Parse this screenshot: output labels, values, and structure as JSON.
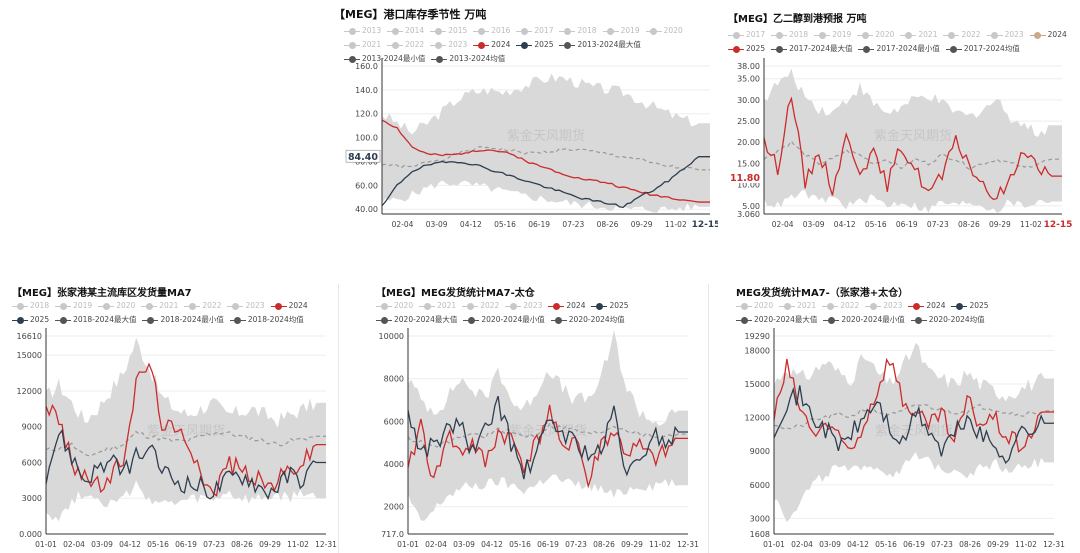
{
  "watermark": "紫金天风期货",
  "colors": {
    "red": "#cc2b2b",
    "navy": "#2d3e50",
    "band": "#d9d9d9",
    "avg": "#999999",
    "muted": "#c8c8c8",
    "text": "#333333"
  },
  "chart_data": [
    {
      "id": "c1",
      "type": "line",
      "title": "【MEG】港口库存季节性 万吨",
      "legend": [
        {
          "label": "2013",
          "muted": true
        },
        {
          "label": "2014",
          "muted": true
        },
        {
          "label": "2015",
          "muted": true
        },
        {
          "label": "2016",
          "muted": true
        },
        {
          "label": "2017",
          "muted": true
        },
        {
          "label": "2018",
          "muted": true
        },
        {
          "label": "2019",
          "muted": true
        },
        {
          "label": "2020",
          "muted": true
        },
        {
          "label": "2021",
          "muted": true
        },
        {
          "label": "2022",
          "muted": true
        },
        {
          "label": "2023",
          "muted": true
        },
        {
          "label": "2024",
          "color": "red"
        },
        {
          "label": "2025",
          "color": "navy"
        },
        {
          "label": "2013-2024最大值",
          "color": "grey"
        },
        {
          "label": "2013-2024最小值",
          "color": "grey"
        },
        {
          "label": "2013-2024均值",
          "color": "grey"
        }
      ],
      "y_ticks": [
        "40.00",
        "60.00",
        "80.00",
        "100.0",
        "120.0",
        "140.0",
        "160.0"
      ],
      "ylim": [
        36,
        160
      ],
      "x_ticks": [
        "02-04",
        "03-09",
        "04-12",
        "05-16",
        "06-19",
        "07-23",
        "08-26",
        "09-29",
        "11-02",
        "12-15"
      ],
      "highlight_x": "12-15",
      "highlight_y": "84.40",
      "highlight_y_value": 84.4,
      "band_max": [
        120,
        112,
        104,
        112,
        122,
        132,
        138,
        140,
        138,
        142,
        146,
        150,
        150,
        146,
        142,
        140,
        138,
        132,
        126,
        120,
        115,
        112
      ],
      "band_min": [
        46,
        48,
        52,
        58,
        62,
        62,
        60,
        58,
        55,
        52,
        50,
        48,
        46,
        44,
        43,
        42,
        40,
        40,
        40,
        40,
        41,
        42
      ],
      "avg": [
        78,
        76,
        75,
        80,
        82,
        86,
        90,
        92,
        90,
        88,
        87,
        88,
        90,
        90,
        88,
        86,
        84,
        82,
        78,
        76,
        74,
        73
      ],
      "series": [
        {
          "name": "2024",
          "color": "red",
          "values": [
            115,
            108,
            92,
            86,
            85,
            86,
            89,
            90,
            88,
            84,
            78,
            74,
            70,
            66,
            64,
            62,
            58,
            55,
            52,
            50,
            48,
            46
          ]
        },
        {
          "name": "2025",
          "color": "navy",
          "values": [
            42,
            60,
            72,
            77,
            79,
            80,
            78,
            74,
            70,
            66,
            62,
            58,
            54,
            50,
            47,
            45,
            42,
            50,
            56,
            64,
            74,
            84
          ]
        }
      ]
    },
    {
      "id": "c2",
      "type": "line",
      "title": "【MEG】乙二醇到港预报 万吨",
      "legend": [
        {
          "label": "2017",
          "muted": true
        },
        {
          "label": "2018",
          "muted": true
        },
        {
          "label": "2019",
          "muted": true
        },
        {
          "label": "2020",
          "muted": true
        },
        {
          "label": "2021",
          "muted": true
        },
        {
          "label": "2022",
          "muted": true
        },
        {
          "label": "2023",
          "muted": true
        },
        {
          "label": "2024",
          "color": "tan"
        },
        {
          "label": "2025",
          "color": "red"
        },
        {
          "label": "2017-2024最大值",
          "color": "grey"
        },
        {
          "label": "2017-2024最小值",
          "color": "grey"
        },
        {
          "label": "2017-2024均值",
          "color": "grey"
        }
      ],
      "y_ticks": [
        "3.060",
        "5.00",
        "10.00",
        "15.00",
        "20.00",
        "25.00",
        "30.00",
        "35.00",
        "38.00"
      ],
      "ylim": [
        3.06,
        38
      ],
      "x_ticks": [
        "02-04",
        "03-09",
        "04-12",
        "05-16",
        "06-19",
        "07-23",
        "08-26",
        "09-29",
        "11-02",
        "12-15"
      ],
      "highlight_x": "12-15",
      "highlight_y": "11.80",
      "highlight_y_value": 11.8,
      "band_max": [
        30,
        34,
        36,
        31,
        28,
        27,
        30,
        33,
        29,
        27,
        28,
        30,
        31,
        29,
        27,
        26,
        28,
        30,
        26,
        24,
        22,
        24
      ],
      "band_min": [
        6,
        5,
        7,
        8,
        6,
        7,
        5,
        6,
        7,
        5,
        6,
        5,
        4,
        6,
        5,
        6,
        5,
        4,
        6,
        5,
        6,
        6
      ],
      "avg": [
        16,
        18,
        20,
        17,
        15,
        16,
        18,
        17,
        15,
        16,
        14,
        16,
        15,
        17,
        16,
        14,
        15,
        16,
        15,
        14,
        15,
        16
      ],
      "series": [
        {
          "name": "2025",
          "color": "red",
          "values": [
            20,
            14,
            32,
            10,
            18,
            9,
            21,
            14,
            17,
            10,
            19,
            14,
            8,
            12,
            20,
            15,
            9,
            7,
            11,
            19,
            14,
            12
          ]
        }
      ]
    },
    {
      "id": "c3",
      "type": "line",
      "title": "【MEG】张家港某主流库区发货量MA7",
      "legend": [
        {
          "label": "2018",
          "muted": true
        },
        {
          "label": "2019",
          "muted": true
        },
        {
          "label": "2020",
          "muted": true
        },
        {
          "label": "2021",
          "muted": true
        },
        {
          "label": "2022",
          "muted": true
        },
        {
          "label": "2023",
          "muted": true
        },
        {
          "label": "2024",
          "color": "red"
        },
        {
          "label": "2025",
          "color": "navy"
        },
        {
          "label": "2018-2024最大值",
          "color": "grey"
        },
        {
          "label": "2018-2024最小值",
          "color": "grey"
        },
        {
          "label": "2018-2024均值",
          "color": "grey"
        }
      ],
      "y_ticks": [
        "0.000",
        "3000",
        "6000",
        "9000",
        "12000",
        "15000",
        "16610"
      ],
      "ylim": [
        0,
        16610
      ],
      "x_ticks": [
        "01-01",
        "02-04",
        "03-09",
        "04-12",
        "05-16",
        "06-19",
        "07-23",
        "08-26",
        "09-29",
        "11-02",
        "12-31"
      ],
      "band_max": [
        11500,
        12500,
        11000,
        9500,
        10500,
        12000,
        13500,
        16200,
        14000,
        11500,
        10500,
        10000,
        10500,
        11000,
        10000,
        10200,
        10500,
        10000,
        9500,
        10000,
        10500,
        11000
      ],
      "band_min": [
        2000,
        1200,
        2800,
        3500,
        3000,
        2500,
        3000,
        4000,
        3000,
        2500,
        2500,
        2800,
        3000,
        2800,
        3500,
        3000,
        2800,
        3000,
        3200,
        3000,
        3500,
        3000
      ],
      "avg": [
        7000,
        7200,
        7500,
        6500,
        6800,
        7200,
        7500,
        8500,
        8200,
        8000,
        7800,
        7800,
        8200,
        8500,
        8500,
        8200,
        8000,
        7800,
        7500,
        7800,
        8000,
        8200
      ],
      "series": [
        {
          "name": "2024",
          "color": "red",
          "values": [
            11000,
            9500,
            6000,
            5000,
            4000,
            4500,
            6500,
            12500,
            14500,
            9500,
            8500,
            8000,
            5500,
            3000,
            6000,
            5500,
            5000,
            4000,
            4500,
            5500,
            6000,
            7500
          ]
        },
        {
          "name": "2025",
          "color": "navy",
          "values": [
            5000,
            8500,
            6500,
            4500,
            5500,
            6000,
            5200,
            6500,
            7000,
            5500,
            4500,
            4200,
            4000,
            3500,
            4500,
            5000,
            4500,
            3500,
            4000,
            5000,
            4500,
            6000
          ]
        }
      ]
    },
    {
      "id": "c4",
      "type": "line",
      "title": "【MEG】MEG发货统计MA7-太仓",
      "legend": [
        {
          "label": "2020",
          "muted": true
        },
        {
          "label": "2021",
          "muted": true
        },
        {
          "label": "2022",
          "muted": true
        },
        {
          "label": "2023",
          "muted": true
        },
        {
          "label": "2024",
          "color": "red"
        },
        {
          "label": "2025",
          "color": "navy"
        },
        {
          "label": "2020-2024最大值",
          "color": "grey"
        },
        {
          "label": "2020-2024最小值",
          "color": "grey"
        },
        {
          "label": "2020-2024均值",
          "color": "grey"
        }
      ],
      "y_ticks": [
        "717.0",
        "2000",
        "4000",
        "6000",
        "8000",
        "10000"
      ],
      "ylim": [
        717,
        10000
      ],
      "x_ticks": [
        "01-01",
        "02-04",
        "03-09",
        "04-12",
        "05-16",
        "06-19",
        "07-23",
        "08-26",
        "09-29",
        "11-02",
        "12-31"
      ],
      "band_max": [
        8000,
        7000,
        6500,
        7000,
        8000,
        7500,
        7000,
        8500,
        7000,
        6500,
        7500,
        8500,
        7500,
        7000,
        7000,
        8000,
        10000,
        7500,
        6500,
        6000,
        6000,
        6500
      ],
      "band_min": [
        2500,
        1200,
        1800,
        2500,
        2800,
        3000,
        3000,
        3200,
        3000,
        2800,
        3000,
        3500,
        3200,
        3000,
        3000,
        2800,
        2500,
        2800,
        3000,
        3000,
        3200,
        3000
      ],
      "avg": [
        5200,
        5000,
        4800,
        5000,
        5200,
        5400,
        5300,
        5600,
        5500,
        5300,
        5400,
        5800,
        5700,
        5600,
        5400,
        5500,
        5800,
        5600,
        5400,
        5300,
        5300,
        5400
      ],
      "series": [
        {
          "name": "2024",
          "color": "red",
          "values": [
            3500,
            6000,
            3000,
            5500,
            4500,
            5000,
            4000,
            5500,
            5200,
            4000,
            5000,
            6500,
            4500,
            5500,
            3000,
            5000,
            5500,
            4500,
            4800,
            4200,
            4500,
            5200
          ]
        },
        {
          "name": "2025",
          "color": "navy",
          "values": [
            6500,
            4500,
            5000,
            5500,
            6000,
            4500,
            5500,
            7000,
            5000,
            3500,
            4500,
            6000,
            5500,
            5000,
            4500,
            4500,
            6500,
            3500,
            4000,
            5500,
            5000,
            5500
          ]
        }
      ]
    },
    {
      "id": "c5",
      "type": "line",
      "title": "MEG发货统计MA7-（张家港+太仓）",
      "legend": [
        {
          "label": "2020",
          "muted": true
        },
        {
          "label": "2021",
          "muted": true
        },
        {
          "label": "2022",
          "muted": true
        },
        {
          "label": "2023",
          "muted": true
        },
        {
          "label": "2024",
          "color": "red"
        },
        {
          "label": "2025",
          "color": "navy"
        },
        {
          "label": "2020-2024最大值",
          "color": "grey"
        },
        {
          "label": "2020-2024最小值",
          "color": "grey"
        },
        {
          "label": "2020-2024均值",
          "color": "grey"
        }
      ],
      "y_ticks": [
        "1608",
        "3000",
        "6000",
        "9000",
        "12000",
        "15000",
        "18000",
        "19290"
      ],
      "ylim": [
        1608,
        19290
      ],
      "x_ticks": [
        "01-01",
        "02-04",
        "03-09",
        "04-12",
        "05-16",
        "06-19",
        "07-23",
        "08-26",
        "09-29",
        "11-02",
        "12-31"
      ],
      "band_max": [
        15000,
        16500,
        15500,
        16000,
        17000,
        16000,
        15500,
        17500,
        16000,
        15000,
        16500,
        18500,
        16000,
        15500,
        15000,
        16000,
        15000,
        14500,
        14000,
        14500,
        15000,
        15500
      ],
      "band_min": [
        5000,
        3000,
        4500,
        6000,
        7000,
        7500,
        7000,
        8000,
        7500,
        7000,
        7500,
        8500,
        8000,
        7500,
        7500,
        7000,
        7500,
        8000,
        7500,
        7500,
        8000,
        8000
      ],
      "avg": [
        11500,
        11000,
        11200,
        11800,
        12000,
        12300,
        12100,
        12800,
        12500,
        12200,
        12500,
        13200,
        13000,
        12700,
        12500,
        12600,
        13000,
        12800,
        12500,
        12300,
        12400,
        12600
      ],
      "series": [
        {
          "name": "2024",
          "color": "red",
          "values": [
            12000,
            16500,
            13000,
            10500,
            11500,
            10000,
            9000,
            11500,
            14500,
            17500,
            13500,
            12500,
            11000,
            12500,
            9500,
            13500,
            11500,
            12000,
            10500,
            9500,
            10500,
            12500
          ]
        },
        {
          "name": "2025",
          "color": "navy",
          "values": [
            11000,
            13500,
            14000,
            12000,
            11000,
            9500,
            10500,
            12000,
            13500,
            11000,
            9500,
            12500,
            11000,
            9000,
            10500,
            12000,
            10500,
            9500,
            8500,
            10500,
            11000,
            11500
          ]
        }
      ]
    }
  ]
}
